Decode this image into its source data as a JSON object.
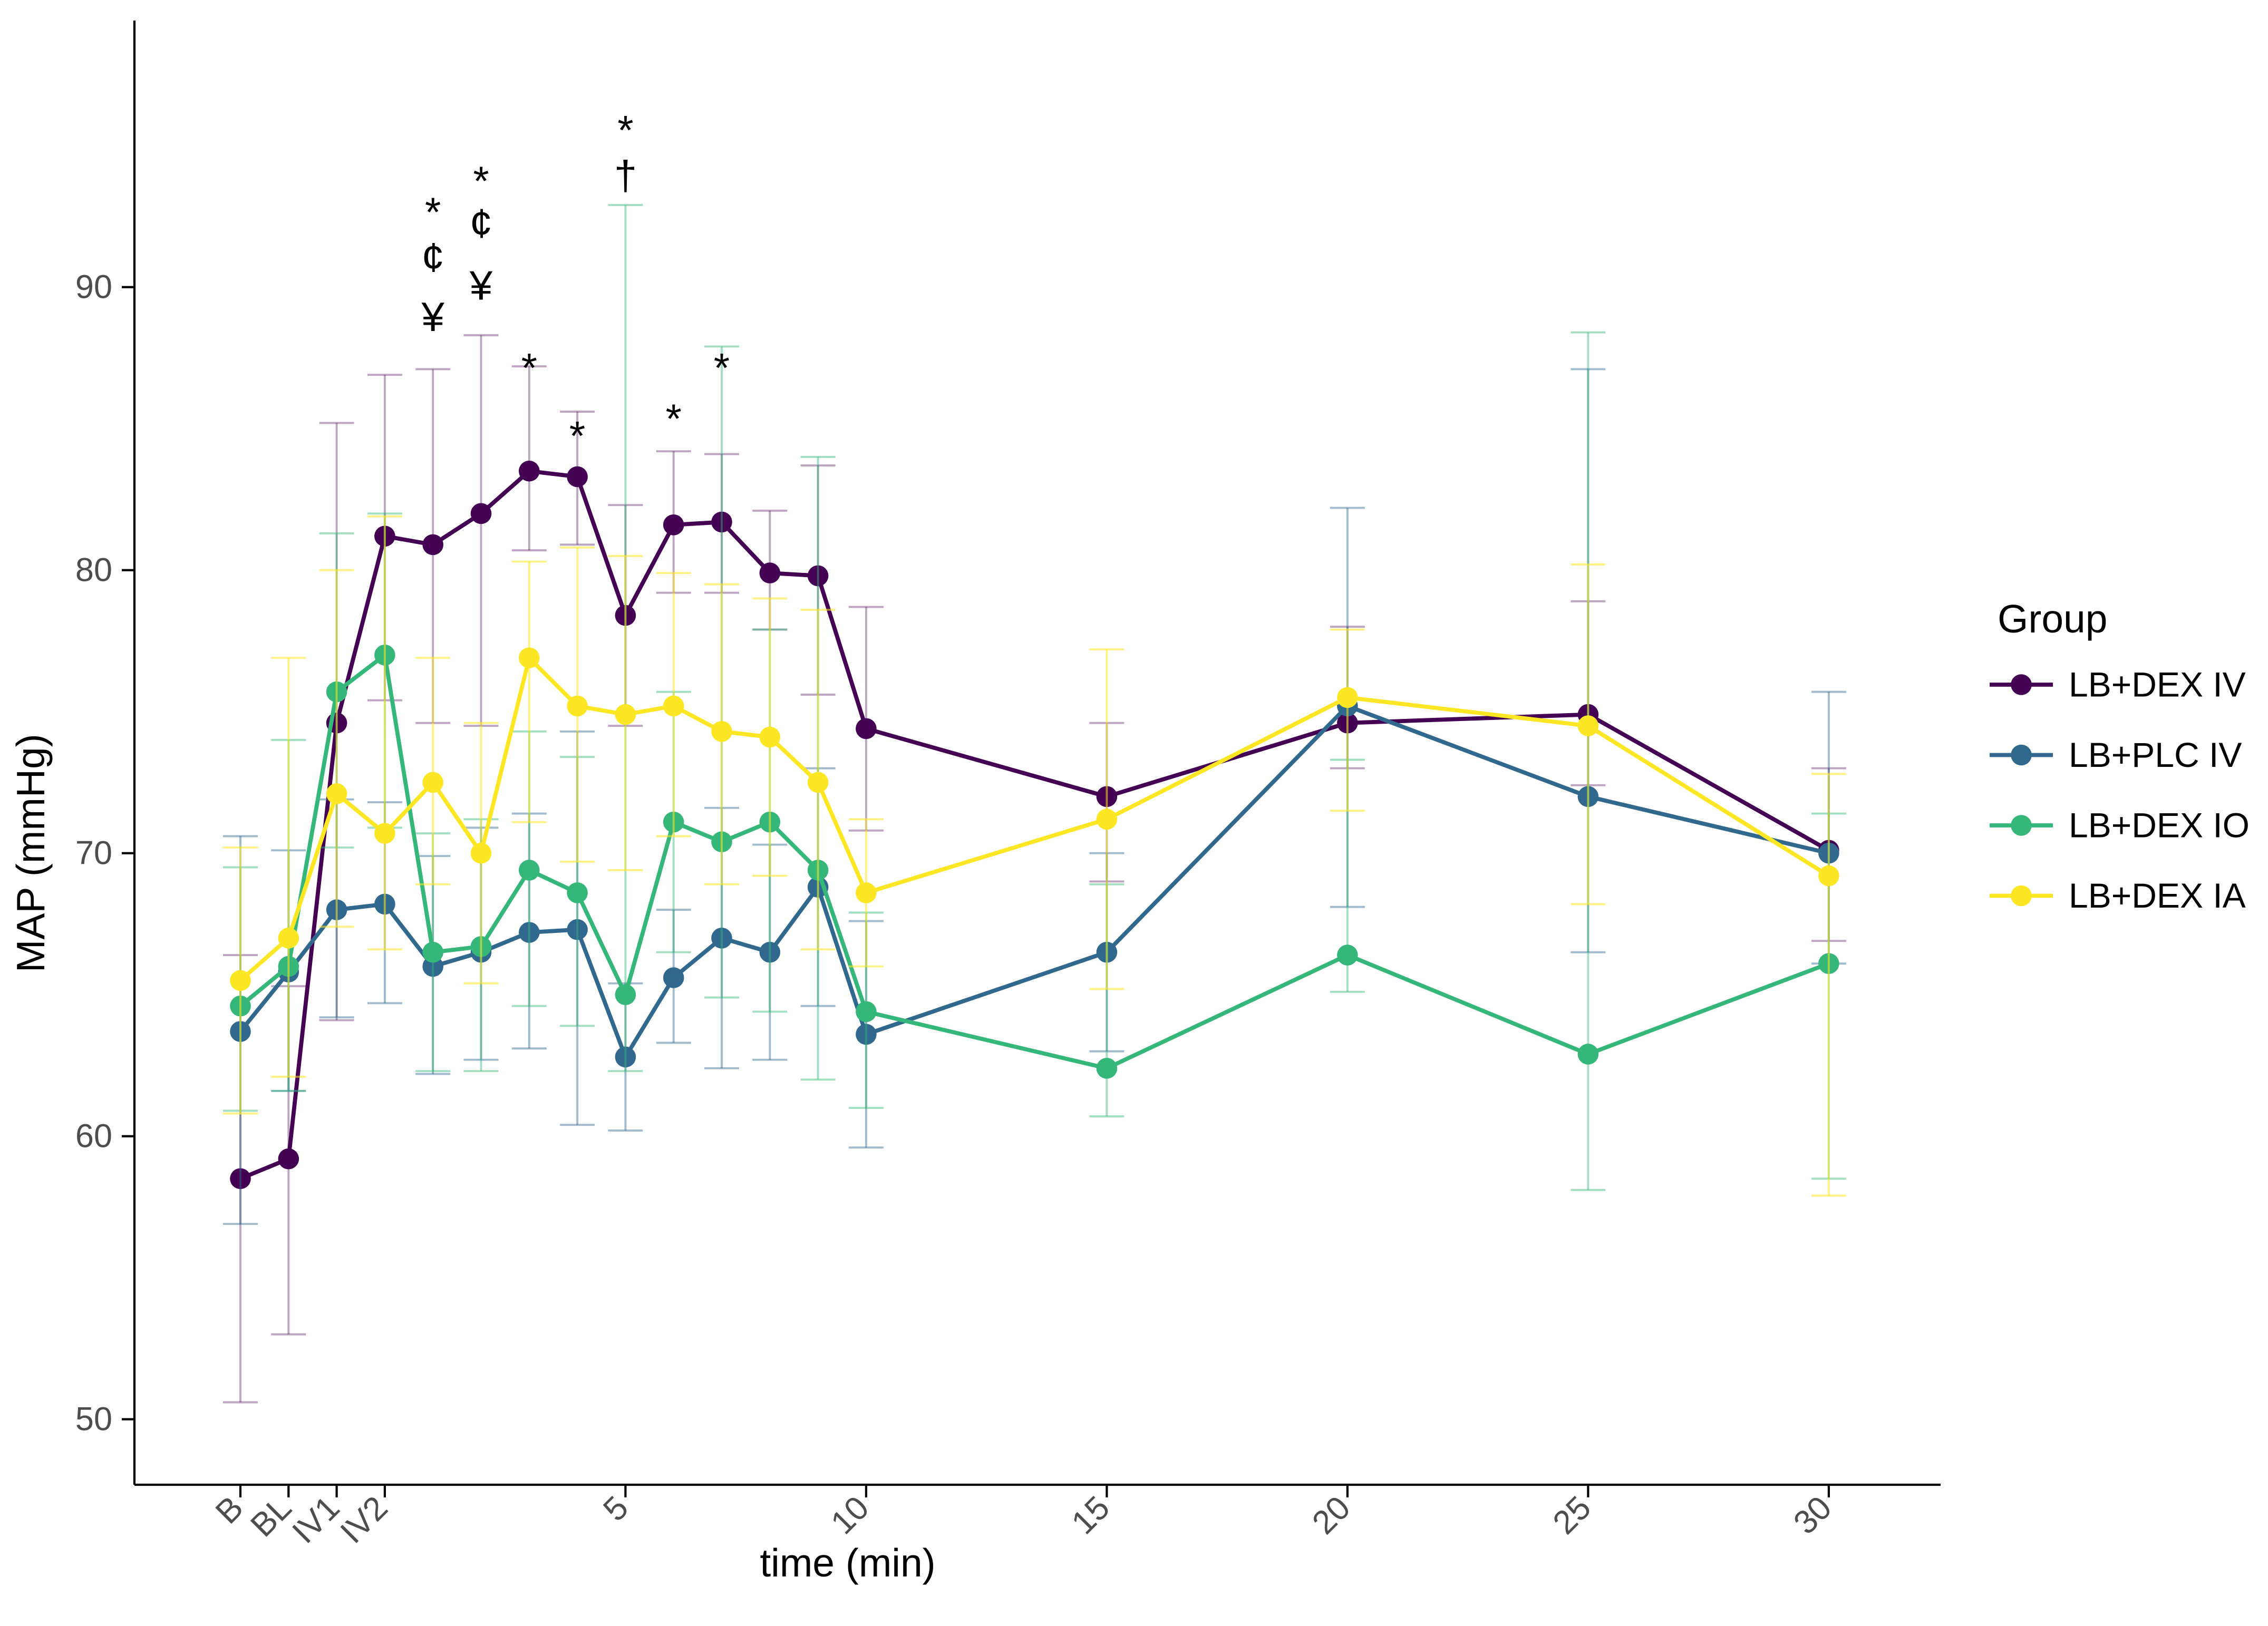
{
  "chart_data": {
    "type": "line",
    "title": "",
    "xlabel": "time (min)",
    "ylabel": "MAP (mmHg)",
    "ylim": [
      47.5,
      99
    ],
    "yticks": [
      "50",
      "60",
      "70",
      "80",
      "90"
    ],
    "ytick_values": [
      50,
      60,
      70,
      80,
      90
    ],
    "grid": "off",
    "background": "#ffffff",
    "axis_color": "#000000",
    "tick_label_color": "#4d4d4d",
    "legend": {
      "title": "Group",
      "position": "right"
    },
    "x_slots": [
      {
        "label": "B",
        "t": -3,
        "tick": true
      },
      {
        "label": "BL",
        "t": -2,
        "tick": true
      },
      {
        "label": "IV1",
        "t": -1,
        "tick": true
      },
      {
        "label": "IV2",
        "t": 0,
        "tick": true
      },
      {
        "label": "1",
        "t": 1,
        "tick": false
      },
      {
        "label": "2",
        "t": 2,
        "tick": false
      },
      {
        "label": "3",
        "t": 3,
        "tick": false
      },
      {
        "label": "4",
        "t": 4,
        "tick": false
      },
      {
        "label": "5",
        "t": 5,
        "tick": true
      },
      {
        "label": "6",
        "t": 6,
        "tick": false
      },
      {
        "label": "7",
        "t": 7,
        "tick": false
      },
      {
        "label": "8",
        "t": 8,
        "tick": false
      },
      {
        "label": "9",
        "t": 9,
        "tick": false
      },
      {
        "label": "10",
        "t": 10,
        "tick": true
      },
      {
        "label": "15",
        "t": 15,
        "tick": true
      },
      {
        "label": "20",
        "t": 20,
        "tick": true
      },
      {
        "label": "25",
        "t": 25,
        "tick": true
      },
      {
        "label": "30",
        "t": 30,
        "tick": true
      }
    ],
    "series": [
      {
        "name": "LB+DEX IV",
        "color": "#440154",
        "err_opacity": 0.35,
        "values": [
          58.5,
          59.2,
          74.6,
          81.2,
          80.9,
          82.0,
          83.5,
          83.3,
          78.4,
          81.6,
          81.7,
          79.9,
          79.8,
          74.4,
          72.0,
          74.6,
          74.9,
          70.1
        ],
        "err_lo": [
          50.6,
          53.0,
          64.1,
          75.4,
          74.6,
          74.5,
          80.7,
          80.9,
          74.5,
          79.2,
          79.2,
          77.9,
          75.6,
          70.8,
          69.0,
          73.0,
          72.4,
          66.9
        ],
        "err_hi": [
          66.4,
          65.3,
          85.2,
          86.9,
          87.1,
          88.3,
          87.2,
          85.6,
          82.3,
          84.2,
          84.1,
          82.1,
          83.7,
          78.7,
          74.6,
          78.0,
          78.9,
          73.0
        ]
      },
      {
        "name": "LB+PLC IV",
        "color": "#31688E",
        "err_opacity": 0.45,
        "values": [
          63.7,
          65.8,
          68.0,
          68.2,
          66.0,
          66.5,
          67.2,
          67.3,
          62.8,
          65.6,
          67.0,
          66.5,
          68.8,
          63.6,
          66.5,
          75.2,
          72.0,
          70.0
        ],
        "err_lo": [
          56.9,
          61.6,
          64.2,
          64.7,
          62.2,
          62.7,
          63.1,
          60.4,
          60.2,
          63.3,
          62.4,
          62.7,
          64.6,
          59.6,
          63.0,
          68.1,
          66.5,
          66.1
        ],
        "err_hi": [
          70.6,
          70.1,
          71.9,
          71.8,
          69.9,
          70.9,
          71.4,
          74.3,
          65.4,
          68.0,
          71.6,
          70.3,
          73.0,
          67.6,
          70.0,
          82.2,
          87.1,
          75.7
        ]
      },
      {
        "name": "LB+DEX IO",
        "color": "#35B779",
        "err_opacity": 0.45,
        "values": [
          64.6,
          66.0,
          75.7,
          77.0,
          66.5,
          66.7,
          69.4,
          68.6,
          65.0,
          71.1,
          70.4,
          71.1,
          69.4,
          64.4,
          62.4,
          66.4,
          62.9,
          66.1
        ],
        "err_lo": [
          60.9,
          61.6,
          70.2,
          70.9,
          62.3,
          62.3,
          64.6,
          63.9,
          62.3,
          66.5,
          64.9,
          64.4,
          62.0,
          61.0,
          60.7,
          65.1,
          58.1,
          58.5
        ],
        "err_hi": [
          69.5,
          74.0,
          81.3,
          82.0,
          70.7,
          71.2,
          74.3,
          73.4,
          92.9,
          75.7,
          87.9,
          77.9,
          84.0,
          67.9,
          68.9,
          73.3,
          88.4,
          71.4
        ]
      },
      {
        "name": "LB+DEX IA",
        "color": "#FDE725",
        "err_opacity": 0.55,
        "values": [
          65.5,
          67.0,
          72.1,
          70.7,
          72.5,
          70.0,
          76.9,
          75.2,
          74.9,
          75.2,
          74.3,
          74.1,
          72.5,
          68.6,
          71.2,
          75.5,
          74.5,
          69.2
        ],
        "err_lo": [
          60.8,
          62.1,
          67.4,
          66.6,
          68.9,
          65.4,
          71.1,
          69.7,
          69.4,
          70.6,
          68.9,
          69.2,
          66.6,
          66.0,
          65.2,
          71.5,
          68.2,
          57.9
        ],
        "err_hi": [
          70.2,
          76.9,
          80.0,
          81.9,
          76.9,
          74.6,
          80.3,
          80.8,
          80.5,
          79.9,
          79.5,
          79.0,
          78.6,
          71.2,
          77.2,
          77.9,
          80.2,
          72.8
        ]
      }
    ],
    "annotations": [
      {
        "slot": "1",
        "glyphs": [
          {
            "char": "*",
            "y": 92.6
          },
          {
            "char": "¢",
            "y": 91.0
          },
          {
            "char": "¥",
            "y": 88.9
          }
        ]
      },
      {
        "slot": "2",
        "glyphs": [
          {
            "char": "*",
            "y": 93.7
          },
          {
            "char": "¢",
            "y": 92.2
          },
          {
            "char": "¥",
            "y": 90.0
          }
        ]
      },
      {
        "slot": "3",
        "glyphs": [
          {
            "char": "*",
            "y": 87.1
          }
        ]
      },
      {
        "slot": "4",
        "glyphs": [
          {
            "char": "*",
            "y": 84.7
          }
        ]
      },
      {
        "slot": "5",
        "glyphs": [
          {
            "char": "*",
            "y": 95.5
          },
          {
            "char": "†",
            "y": 93.9
          }
        ]
      },
      {
        "slot": "6",
        "glyphs": [
          {
            "char": "*",
            "y": 85.3
          }
        ]
      },
      {
        "slot": "7",
        "glyphs": [
          {
            "char": "*",
            "y": 87.1
          }
        ]
      }
    ]
  }
}
